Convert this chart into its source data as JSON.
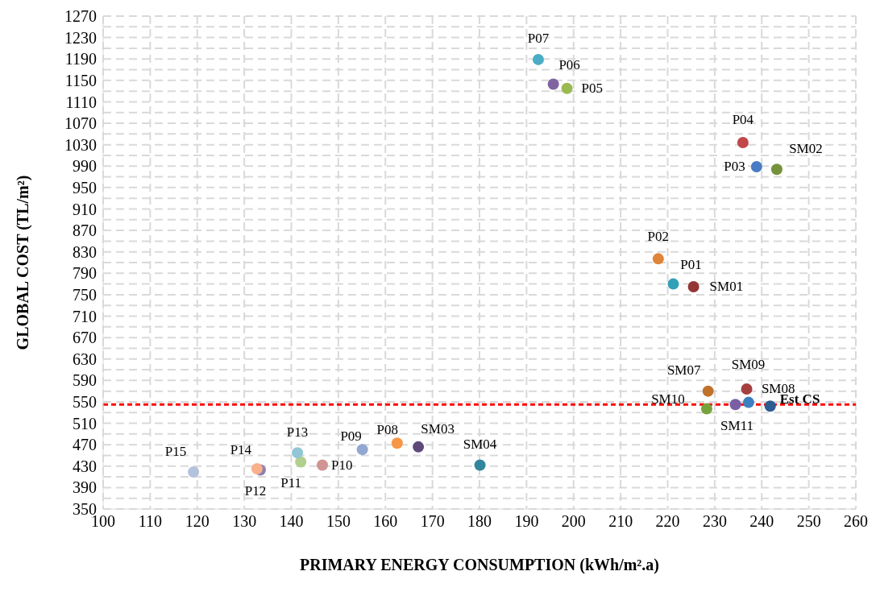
{
  "chart_data": {
    "type": "scatter",
    "xlabel": "PRIMARY ENERGY CONSUMPTION (kWh/m².a)",
    "ylabel": "GLOBAL COST (TL/m²)",
    "xlim": [
      100,
      260
    ],
    "xticks": [
      100,
      110,
      120,
      130,
      140,
      150,
      160,
      170,
      180,
      190,
      200,
      210,
      220,
      230,
      240,
      250,
      260
    ],
    "ylim": [
      350,
      1270
    ],
    "yticks": [
      350,
      {
        "value": 370,
        "label": null
      },
      390,
      {
        "value": 410,
        "label": null
      },
      430,
      {
        "value": 450,
        "label": null
      },
      470,
      {
        "value": 490,
        "label": null
      },
      510,
      {
        "value": 530,
        "label": null
      },
      550,
      {
        "value": 570,
        "label": null
      },
      590,
      {
        "value": 610,
        "label": null
      },
      630,
      {
        "value": 650,
        "label": null
      },
      670,
      {
        "value": 690,
        "label": null
      },
      710,
      {
        "value": 730,
        "label": null
      },
      750,
      {
        "value": 770,
        "label": null
      },
      790,
      {
        "value": 810,
        "label": null
      },
      830,
      {
        "value": 850,
        "label": null
      },
      870,
      {
        "value": 890,
        "label": null
      },
      910,
      {
        "value": 930,
        "label": null
      },
      950,
      {
        "value": 970,
        "label": null
      },
      990,
      {
        "value": 1010,
        "label": null
      },
      1030,
      {
        "value": 1050,
        "label": null
      },
      1070,
      {
        "value": 1090,
        "label": null
      },
      1110,
      {
        "value": 1130,
        "label": null
      },
      1150,
      {
        "value": 1170,
        "label": null
      },
      1190,
      {
        "value": 1210,
        "label": null
      },
      1230,
      {
        "value": 1250,
        "label": null
      },
      1270
    ],
    "grid": true,
    "marker": "circle",
    "ref_lines": [
      {
        "axis": "y",
        "value": 545,
        "color": "#ff0000",
        "line_style": "dashed"
      }
    ],
    "series": [
      {
        "name": "P01",
        "color": "#31a0b9",
        "x": [
          221.2
        ],
        "values": [
          770
        ]
      },
      {
        "name": "P02",
        "color": "#e0843a",
        "x": [
          218
        ],
        "values": [
          817
        ]
      },
      {
        "name": "P03",
        "color": "#4a7cc4",
        "x": [
          238.9
        ],
        "values": [
          989
        ]
      },
      {
        "name": "P04",
        "color": "#c0474a",
        "x": [
          236
        ],
        "values": [
          1034
        ]
      },
      {
        "name": "P05",
        "color": "#9bbb52",
        "x": [
          198.6
        ],
        "values": [
          1135
        ]
      },
      {
        "name": "P06",
        "color": "#8064a2",
        "x": [
          195.7
        ],
        "values": [
          1143
        ]
      },
      {
        "name": "P07",
        "color": "#4bacc6",
        "x": [
          192.5
        ],
        "values": [
          1189
        ]
      },
      {
        "name": "P08",
        "color": "#f79646",
        "x": [
          162.5
        ],
        "values": [
          473
        ]
      },
      {
        "name": "P09",
        "color": "#93a8d0",
        "x": [
          155.1
        ],
        "values": [
          461
        ]
      },
      {
        "name": "P10",
        "color": "#d19393",
        "x": [
          146.6
        ],
        "values": [
          432
        ]
      },
      {
        "name": "P11",
        "color": "#b3cf8e",
        "x": [
          142
        ],
        "values": [
          438
        ]
      },
      {
        "name": "P12",
        "color": "#8e80b5",
        "x": [
          133.4
        ],
        "values": [
          423
        ]
      },
      {
        "name": "P13",
        "color": "#92c6d6",
        "x": [
          141.3
        ],
        "values": [
          455
        ]
      },
      {
        "name": "P14",
        "color": "#fab08a",
        "x": [
          132.7
        ],
        "values": [
          425
        ]
      },
      {
        "name": "P15",
        "color": "#b5c2dd",
        "x": [
          119.2
        ],
        "values": [
          419
        ]
      },
      {
        "name": "SM01",
        "color": "#943634",
        "x": [
          225.5
        ],
        "values": [
          765
        ]
      },
      {
        "name": "SM02",
        "color": "#76923c",
        "x": [
          243.2
        ],
        "values": [
          984
        ]
      },
      {
        "name": "SM03",
        "color": "#5f497a",
        "x": [
          167
        ],
        "values": [
          466
        ]
      },
      {
        "name": "SM04",
        "color": "#31859c",
        "x": [
          180.1
        ],
        "values": [
          432
        ]
      },
      {
        "name": "SM07",
        "color": "#c0722b",
        "x": [
          228.6
        ],
        "values": [
          570
        ]
      },
      {
        "name": "SM09",
        "color": "#a5403f",
        "x": [
          236.8
        ],
        "values": [
          574
        ]
      },
      {
        "name": "SM08",
        "color": "#3c7fc0",
        "x": [
          237.2
        ],
        "values": [
          549
        ]
      },
      {
        "name": "SM10",
        "color": "#77a33b",
        "x": [
          228.3
        ],
        "values": [
          537
        ]
      },
      {
        "name": "SM11",
        "color": "#7a5ea5",
        "x": [
          234.4
        ],
        "values": [
          545
        ]
      },
      {
        "name": "Est CS",
        "color": "#2c5c91",
        "x": [
          241.8
        ],
        "values": [
          542
        ]
      }
    ]
  }
}
